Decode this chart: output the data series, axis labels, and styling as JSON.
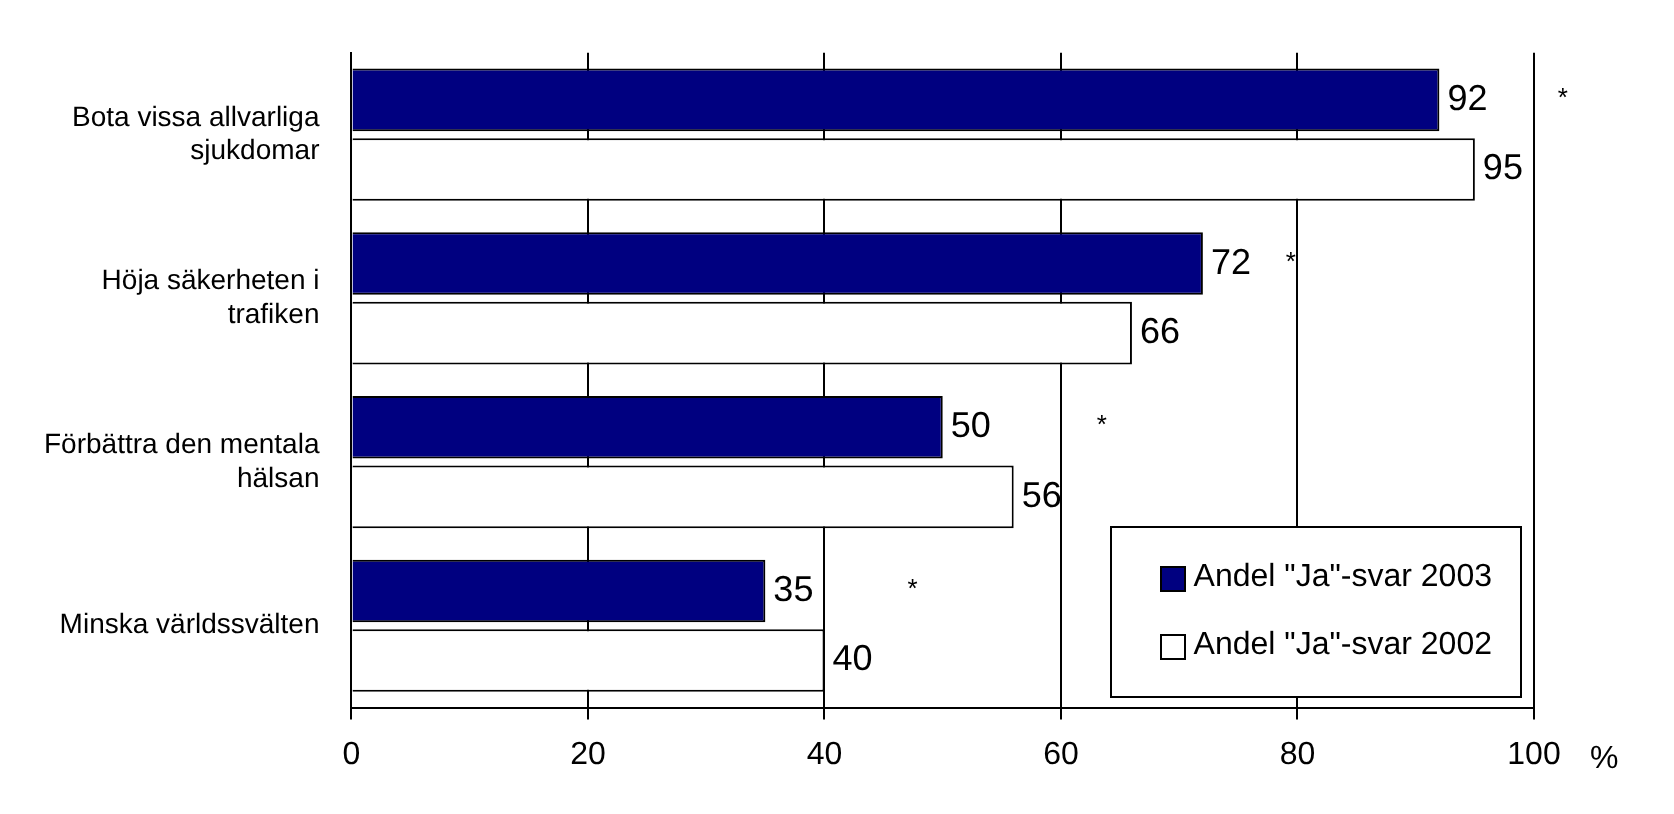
{
  "chart_data": {
    "type": "bar",
    "orientation": "horizontal",
    "categories": [
      "Bota vissa allvarliga sjukdomar",
      "Höja säkerheten i trafiken",
      "Förbättra den mentala hälsan",
      "Minska världssvälten"
    ],
    "series": [
      {
        "name": "Andel \"Ja\"-svar 2003",
        "color": "#000080",
        "values": [
          92,
          72,
          50,
          35
        ]
      },
      {
        "name": "Andel \"Ja\"-svar 2002",
        "color": "#ffffff",
        "values": [
          95,
          66,
          56,
          40
        ]
      }
    ],
    "xlabel": "%",
    "xlim": [
      0,
      100
    ],
    "xticks": [
      0,
      20,
      40,
      60,
      80,
      100
    ],
    "grid": "x",
    "legend": "bottom right",
    "data_labels": true,
    "annotations": [
      "*",
      "*",
      "*",
      "*"
    ]
  }
}
